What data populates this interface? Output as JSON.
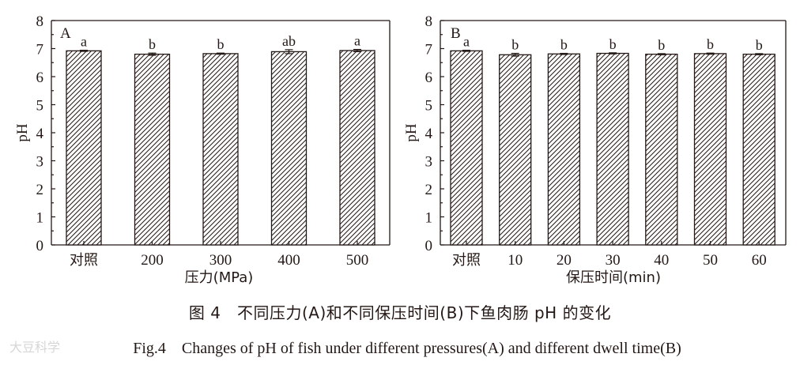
{
  "chart_data": [
    {
      "type": "bar",
      "panel_label": "A",
      "categories": [
        "对照",
        "200",
        "300",
        "400",
        "500"
      ],
      "values": [
        6.92,
        6.8,
        6.82,
        6.89,
        6.93
      ],
      "errors": [
        0.02,
        0.04,
        0.02,
        0.07,
        0.04
      ],
      "significance": [
        "a",
        "b",
        "b",
        "ab",
        "a"
      ],
      "xlabel": "压力(MPa)",
      "ylabel": "pH",
      "ylim": [
        0,
        8
      ],
      "yticks": [
        "0",
        "1",
        "2",
        "3",
        "4",
        "5",
        "6",
        "7",
        "8"
      ],
      "fill": "diagonal hatch",
      "grid": false
    },
    {
      "type": "bar",
      "panel_label": "B",
      "categories": [
        "对照",
        "10",
        "20",
        "30",
        "40",
        "50",
        "60"
      ],
      "values": [
        6.92,
        6.78,
        6.81,
        6.83,
        6.8,
        6.82,
        6.8
      ],
      "errors": [
        0.02,
        0.05,
        0.02,
        0.02,
        0.02,
        0.02,
        0.02
      ],
      "significance": [
        "a",
        "b",
        "b",
        "b",
        "b",
        "b",
        "b"
      ],
      "xlabel": "保压时间(min)",
      "ylabel": "pH",
      "ylim": [
        0,
        8
      ],
      "yticks": [
        "0",
        "1",
        "2",
        "3",
        "4",
        "5",
        "6",
        "7",
        "8"
      ],
      "fill": "diagonal hatch",
      "grid": false
    }
  ],
  "caption": {
    "chinese": "图 4　不同压力(A)和不同保压时间(B)下鱼肉肠 pH 的变化",
    "english": "Fig.4　Changes of pH of fish under different pressures(A) and different dwell time(B)"
  },
  "watermark": "大豆科学",
  "colors": {
    "ink": "#231815",
    "bar_fill": "#ffffff",
    "hatch": "#231815"
  }
}
